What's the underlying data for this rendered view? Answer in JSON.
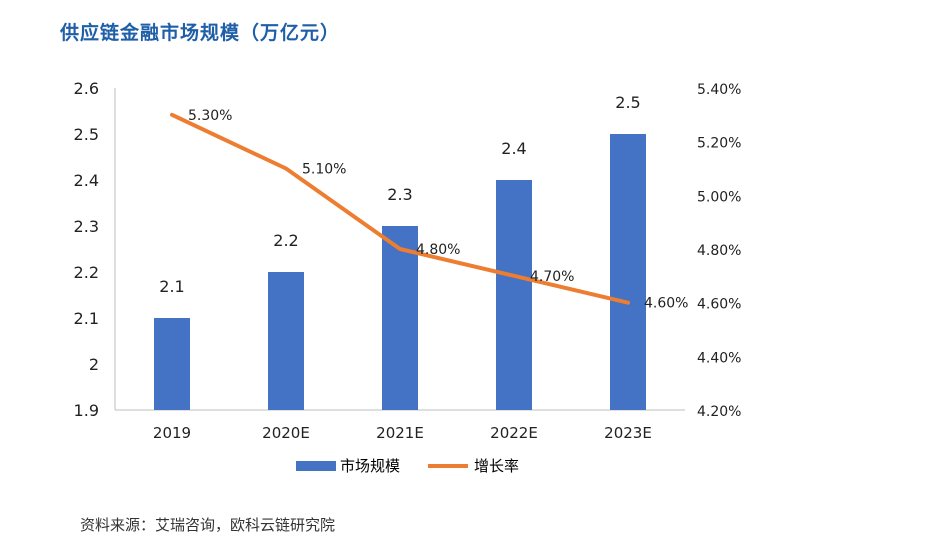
{
  "title": "供应链金融市场规模（万亿元）",
  "source": "资料来源：艾瑞咨询，欧科云链研究院",
  "chart_data": {
    "type": "bar",
    "title": "供应链金融市场规模（万亿元）",
    "categories": [
      "2019",
      "2020E",
      "2021E",
      "2022E",
      "2023E"
    ],
    "series": [
      {
        "name": "市场规模",
        "type": "bar",
        "axis": "left",
        "values": [
          2.1,
          2.2,
          2.3,
          2.4,
          2.5
        ],
        "labels": [
          "2.1",
          "2.2",
          "2.3",
          "2.4",
          "2.5"
        ],
        "color": "#4472c4"
      },
      {
        "name": "增长率",
        "type": "line",
        "axis": "right",
        "values": [
          5.3,
          5.1,
          4.8,
          4.7,
          4.6
        ],
        "labels": [
          "5.30%",
          "5.10%",
          "4.80%",
          "4.70%",
          "4.60%"
        ],
        "color": "#ed7d31"
      }
    ],
    "y_left": {
      "min": 1.9,
      "max": 2.6,
      "ticks": [
        1.9,
        2.0,
        2.1,
        2.2,
        2.3,
        2.4,
        2.5,
        2.6
      ],
      "tick_labels": [
        "1.9",
        "2",
        "2.1",
        "2.2",
        "2.3",
        "2.4",
        "2.5",
        "2.6"
      ]
    },
    "y_right": {
      "min": 4.2,
      "max": 5.4,
      "ticks": [
        4.2,
        4.4,
        4.6,
        4.8,
        5.0,
        5.2,
        5.4
      ],
      "tick_labels": [
        "4.20%",
        "4.40%",
        "4.60%",
        "4.80%",
        "5.00%",
        "5.20%",
        "5.40%"
      ]
    },
    "legend": {
      "position": "bottom",
      "entries": [
        "市场规模",
        "增长率"
      ]
    },
    "grid": false
  }
}
